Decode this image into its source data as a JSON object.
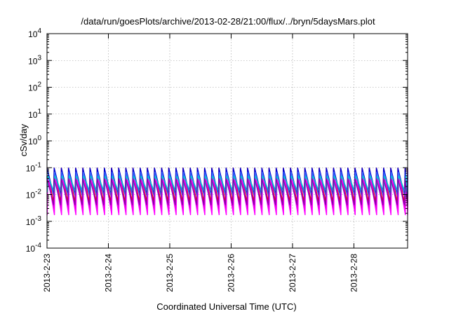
{
  "chart_data": {
    "type": "line",
    "title": "/data/run/goesPlots/archive/2013-02-28/21:00/flux/../bryn/5daysMars.plot",
    "xlabel": "Coordinated Universal Time (UTC)",
    "ylabel": "cSv/day",
    "yscale": "log",
    "ylim": [
      0.0001,
      10000
    ],
    "xlim": [
      "2013-02-23 00:00",
      "2013-02-28 21:00"
    ],
    "grid": true,
    "y_ticks": [
      {
        "base": "10",
        "exp": "-4"
      },
      {
        "base": "10",
        "exp": "-3"
      },
      {
        "base": "10",
        "exp": "-2"
      },
      {
        "base": "10",
        "exp": "-1"
      },
      {
        "base": "10",
        "exp": "0"
      },
      {
        "base": "10",
        "exp": "1"
      },
      {
        "base": "10",
        "exp": "2"
      },
      {
        "base": "10",
        "exp": "3"
      },
      {
        "base": "10",
        "exp": "4"
      }
    ],
    "x_ticks": [
      "2013-2-23",
      "2013-2-24",
      "2013-2-25",
      "2013-2-26",
      "2013-2-27",
      "2013-2-28"
    ],
    "pattern": {
      "description_free": true,
      "cycle_hours": 2.8,
      "series": [
        {
          "color": "#ff0000",
          "peak": 0.1,
          "trough": 0.005
        },
        {
          "color": "#cc00cc",
          "peak": 0.08,
          "trough": 0.0025
        },
        {
          "color": "#ff00ff",
          "peak": 0.05,
          "trough": 0.0017
        },
        {
          "color": "#0000cc",
          "peak": 0.1,
          "trough": 0.01
        },
        {
          "color": "#3366ff",
          "peak": 0.07,
          "trough": 0.008
        },
        {
          "color": "#00cccc",
          "peak": 0.05,
          "trough": 0.012
        },
        {
          "color": "#8800aa",
          "peak": 0.04,
          "trough": 0.004
        }
      ]
    }
  }
}
